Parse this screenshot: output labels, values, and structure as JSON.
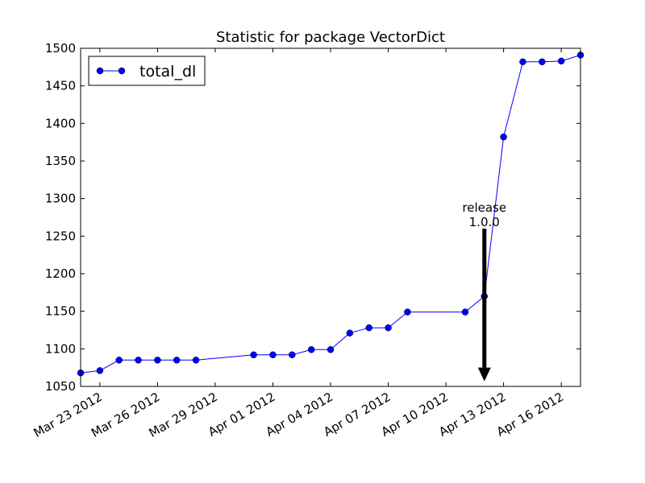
{
  "chart_data": {
    "type": "line",
    "title": "Statistic for package VectorDict",
    "xlabel": "",
    "ylabel": "",
    "x_range": [
      "2012-03-22",
      "2012-04-17"
    ],
    "ylim": [
      1050,
      1500
    ],
    "y_ticks": [
      1050,
      1100,
      1150,
      1200,
      1250,
      1300,
      1350,
      1400,
      1450,
      1500
    ],
    "x_ticks": [
      {
        "date": "2012-03-23",
        "label": "Mar 23 2012"
      },
      {
        "date": "2012-03-26",
        "label": "Mar 26 2012"
      },
      {
        "date": "2012-03-29",
        "label": "Mar 29 2012"
      },
      {
        "date": "2012-04-01",
        "label": "Apr 01 2012"
      },
      {
        "date": "2012-04-04",
        "label": "Apr 04 2012"
      },
      {
        "date": "2012-04-07",
        "label": "Apr 07 2012"
      },
      {
        "date": "2012-04-10",
        "label": "Apr 10 2012"
      },
      {
        "date": "2012-04-13",
        "label": "Apr 13 2012"
      },
      {
        "date": "2012-04-16",
        "label": "Apr 16 2012"
      }
    ],
    "grid": false,
    "legend_position": "top-left",
    "series": [
      {
        "name": "total_dl",
        "color": "#0000ff",
        "marker": "circle",
        "points": [
          {
            "x": "2012-03-22",
            "y": 1068
          },
          {
            "x": "2012-03-23",
            "y": 1071
          },
          {
            "x": "2012-03-24",
            "y": 1085
          },
          {
            "x": "2012-03-25",
            "y": 1085
          },
          {
            "x": "2012-03-26",
            "y": 1085
          },
          {
            "x": "2012-03-27",
            "y": 1085
          },
          {
            "x": "2012-03-28",
            "y": 1085
          },
          {
            "x": "2012-03-31",
            "y": 1092
          },
          {
            "x": "2012-04-01",
            "y": 1092
          },
          {
            "x": "2012-04-02",
            "y": 1092
          },
          {
            "x": "2012-04-03",
            "y": 1099
          },
          {
            "x": "2012-04-04",
            "y": 1099
          },
          {
            "x": "2012-04-05",
            "y": 1121
          },
          {
            "x": "2012-04-06",
            "y": 1128
          },
          {
            "x": "2012-04-07",
            "y": 1128
          },
          {
            "x": "2012-04-08",
            "y": 1149
          },
          {
            "x": "2012-04-11",
            "y": 1149
          },
          {
            "x": "2012-04-12",
            "y": 1170
          },
          {
            "x": "2012-04-13",
            "y": 1382
          },
          {
            "x": "2012-04-14",
            "y": 1482
          },
          {
            "x": "2012-04-15",
            "y": 1482
          },
          {
            "x": "2012-04-16",
            "y": 1483
          },
          {
            "x": "2012-04-17",
            "y": 1491
          }
        ]
      }
    ],
    "annotations": [
      {
        "text_lines": [
          "release",
          "1.0.0"
        ],
        "x": "2012-04-12",
        "y_from": 1260,
        "y_to": 1060
      }
    ]
  }
}
